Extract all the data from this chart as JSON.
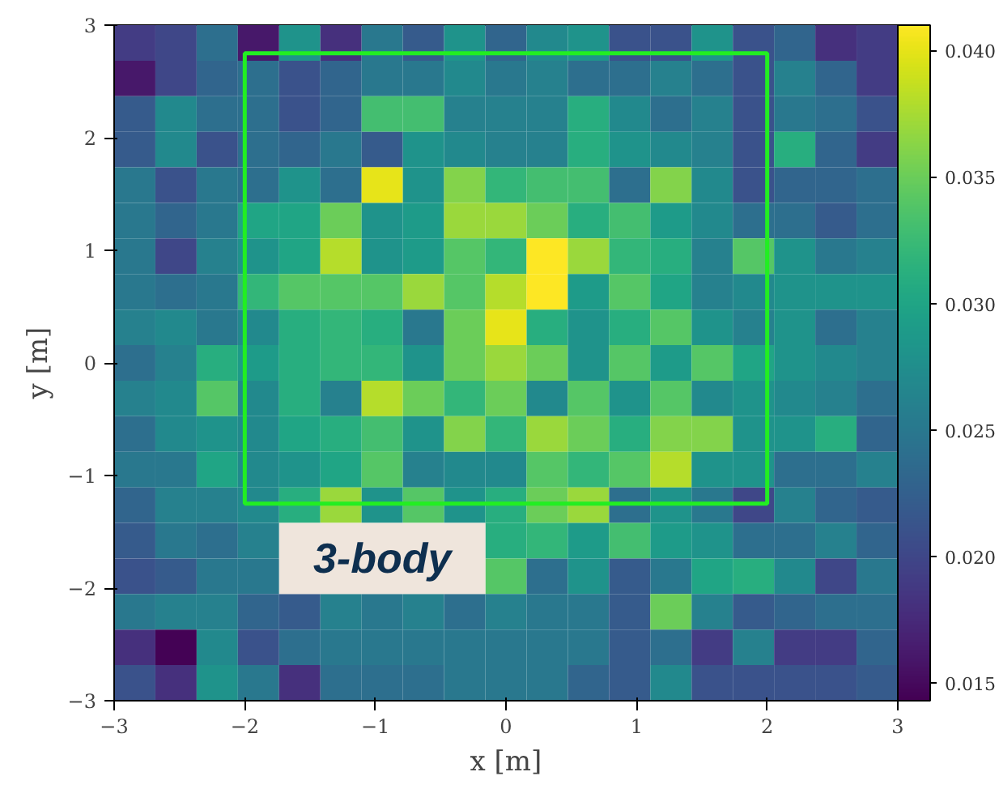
{
  "chart_data": {
    "type": "heatmap",
    "xlabel": "x [m]",
    "ylabel": "y [m]",
    "xlim": [
      -3,
      3
    ],
    "ylim": [
      -3,
      3
    ],
    "xticks": [
      {
        "value": -3,
        "label": "−3"
      },
      {
        "value": -2,
        "label": "−2"
      },
      {
        "value": -1,
        "label": "−1"
      },
      0,
      1,
      2,
      3
    ],
    "yticks": [
      {
        "value": -3,
        "label": "−3"
      },
      {
        "value": -2,
        "label": "−2"
      },
      {
        "value": -1,
        "label": "−1"
      },
      0,
      1,
      2,
      3
    ],
    "clim": [
      0.0143,
      0.041
    ],
    "cticks": [
      {
        "value": 0.015,
        "label": "0.015"
      },
      {
        "value": 0.02,
        "label": "0.020"
      },
      {
        "value": 0.025,
        "label": "0.025"
      },
      {
        "value": 0.03,
        "label": "0.030"
      },
      {
        "value": 0.035,
        "label": "0.035"
      },
      {
        "value": 0.04,
        "label": "0.040"
      }
    ],
    "grid": false,
    "annotations": [
      "3-body"
    ],
    "cells": [
      [
        0.019,
        0.02,
        0.024,
        0.016,
        0.028,
        0.018,
        0.025,
        0.022,
        0.028,
        0.023,
        0.027,
        0.028,
        0.021,
        0.021,
        0.028,
        0.021,
        0.023,
        0.018,
        0.019
      ],
      [
        0.016,
        0.02,
        0.023,
        0.024,
        0.021,
        0.023,
        0.025,
        0.025,
        0.027,
        0.025,
        0.026,
        0.024,
        0.024,
        0.026,
        0.024,
        0.021,
        0.026,
        0.023,
        0.019
      ],
      [
        0.022,
        0.027,
        0.024,
        0.024,
        0.021,
        0.023,
        0.033,
        0.033,
        0.026,
        0.026,
        0.026,
        0.031,
        0.027,
        0.024,
        0.026,
        0.021,
        0.025,
        0.024,
        0.021
      ],
      [
        0.022,
        0.027,
        0.021,
        0.024,
        0.023,
        0.025,
        0.022,
        0.028,
        0.027,
        0.026,
        0.026,
        0.031,
        0.028,
        0.027,
        0.026,
        0.021,
        0.031,
        0.023,
        0.019
      ],
      [
        0.025,
        0.021,
        0.025,
        0.024,
        0.028,
        0.024,
        0.04,
        0.028,
        0.036,
        0.032,
        0.033,
        0.033,
        0.024,
        0.036,
        0.027,
        0.021,
        0.023,
        0.023,
        0.024
      ],
      [
        0.025,
        0.023,
        0.025,
        0.03,
        0.03,
        0.035,
        0.028,
        0.029,
        0.037,
        0.037,
        0.035,
        0.031,
        0.033,
        0.029,
        0.027,
        0.024,
        0.024,
        0.022,
        0.024
      ],
      [
        0.025,
        0.02,
        0.026,
        0.028,
        0.03,
        0.038,
        0.028,
        0.029,
        0.034,
        0.032,
        0.041,
        0.037,
        0.032,
        0.031,
        0.026,
        0.034,
        0.028,
        0.025,
        0.026
      ],
      [
        0.025,
        0.024,
        0.025,
        0.032,
        0.034,
        0.034,
        0.034,
        0.037,
        0.034,
        0.038,
        0.041,
        0.029,
        0.034,
        0.03,
        0.026,
        0.027,
        0.028,
        0.028,
        0.028
      ],
      [
        0.026,
        0.027,
        0.025,
        0.027,
        0.031,
        0.032,
        0.031,
        0.025,
        0.035,
        0.04,
        0.031,
        0.028,
        0.031,
        0.034,
        0.028,
        0.026,
        0.028,
        0.024,
        0.026
      ],
      [
        0.024,
        0.026,
        0.031,
        0.029,
        0.031,
        0.032,
        0.032,
        0.028,
        0.035,
        0.037,
        0.035,
        0.028,
        0.034,
        0.029,
        0.034,
        0.03,
        0.028,
        0.027,
        0.026
      ],
      [
        0.026,
        0.027,
        0.034,
        0.027,
        0.031,
        0.026,
        0.038,
        0.035,
        0.032,
        0.035,
        0.027,
        0.034,
        0.028,
        0.034,
        0.027,
        0.028,
        0.027,
        0.026,
        0.024
      ],
      [
        0.024,
        0.027,
        0.028,
        0.027,
        0.03,
        0.031,
        0.033,
        0.028,
        0.036,
        0.032,
        0.037,
        0.035,
        0.031,
        0.036,
        0.036,
        0.028,
        0.028,
        0.031,
        0.023
      ],
      [
        0.025,
        0.025,
        0.03,
        0.027,
        0.028,
        0.03,
        0.034,
        0.026,
        0.027,
        0.027,
        0.034,
        0.032,
        0.034,
        0.038,
        0.028,
        0.028,
        0.024,
        0.024,
        0.026
      ],
      [
        0.023,
        0.026,
        0.026,
        0.027,
        0.031,
        0.037,
        0.028,
        0.034,
        0.028,
        0.031,
        0.035,
        0.037,
        0.024,
        0.028,
        0.025,
        0.02,
        0.026,
        0.023,
        0.022
      ],
      [
        0.022,
        0.025,
        0.024,
        0.026,
        null,
        null,
        null,
        null,
        null,
        0.031,
        0.032,
        0.029,
        0.033,
        0.029,
        0.028,
        0.024,
        0.024,
        0.026,
        0.023
      ],
      [
        0.021,
        0.022,
        0.025,
        0.025,
        null,
        null,
        null,
        null,
        null,
        0.034,
        0.024,
        0.028,
        0.022,
        0.025,
        0.03,
        0.031,
        0.027,
        0.02,
        0.025
      ],
      [
        0.025,
        0.026,
        0.026,
        0.023,
        0.022,
        0.026,
        0.025,
        0.026,
        0.024,
        0.026,
        0.025,
        0.025,
        0.022,
        0.035,
        0.026,
        0.022,
        0.023,
        0.024,
        0.024
      ],
      [
        0.018,
        0.0145,
        0.027,
        0.021,
        0.024,
        0.025,
        0.025,
        0.025,
        0.025,
        0.025,
        0.025,
        0.025,
        0.022,
        0.024,
        0.019,
        0.026,
        0.019,
        0.019,
        0.023
      ],
      [
        0.021,
        0.018,
        0.028,
        0.025,
        0.018,
        0.024,
        0.024,
        0.024,
        0.025,
        0.025,
        0.025,
        0.023,
        0.022,
        0.027,
        0.021,
        0.021,
        0.021,
        0.021,
        0.022
      ]
    ]
  }
}
